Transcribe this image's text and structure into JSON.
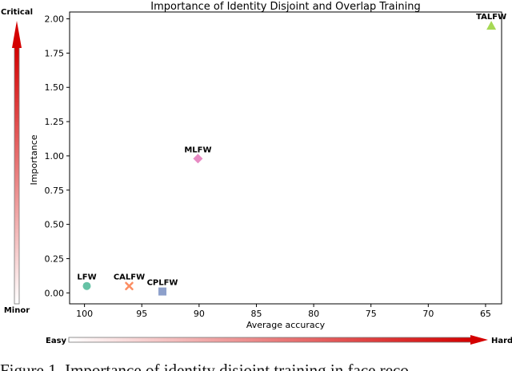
{
  "chart_data": {
    "type": "scatter",
    "title": "Importance of Identity Disjoint and Overlap Training",
    "xlabel": "Average accuracy",
    "ylabel": "Importance",
    "x_inverted": true,
    "xlim": [
      101.3,
      63.6
    ],
    "ylim": [
      -0.08,
      2.05
    ],
    "xticks": [
      100,
      95,
      90,
      85,
      80,
      75,
      70,
      65
    ],
    "yticks": [
      "0.00",
      "0.25",
      "0.50",
      "0.75",
      "1.00",
      "1.25",
      "1.50",
      "1.75",
      "2.00"
    ],
    "grid": false,
    "points": [
      {
        "name": "LFW",
        "x": 99.8,
        "y": 0.05,
        "marker": "circle",
        "color": "#66c2a5"
      },
      {
        "name": "CALFW",
        "x": 96.1,
        "y": 0.05,
        "marker": "x",
        "color": "#fc8d62"
      },
      {
        "name": "CPLFW",
        "x": 93.2,
        "y": 0.01,
        "marker": "square",
        "color": "#8da0cb"
      },
      {
        "name": "MLFW",
        "x": 90.1,
        "y": 0.98,
        "marker": "diamond",
        "color": "#e78ac3"
      },
      {
        "name": "TALFW",
        "x": 64.5,
        "y": 1.95,
        "marker": "triangle",
        "color": "#a6d854"
      }
    ],
    "importance_arrow": {
      "top_label": "Critical",
      "bottom_label": "Minor"
    },
    "difficulty_arrow": {
      "left_label": "Easy",
      "right_label": "Hard"
    }
  },
  "caption": "Figure 1. Importance of identity disjoint training in face reco"
}
